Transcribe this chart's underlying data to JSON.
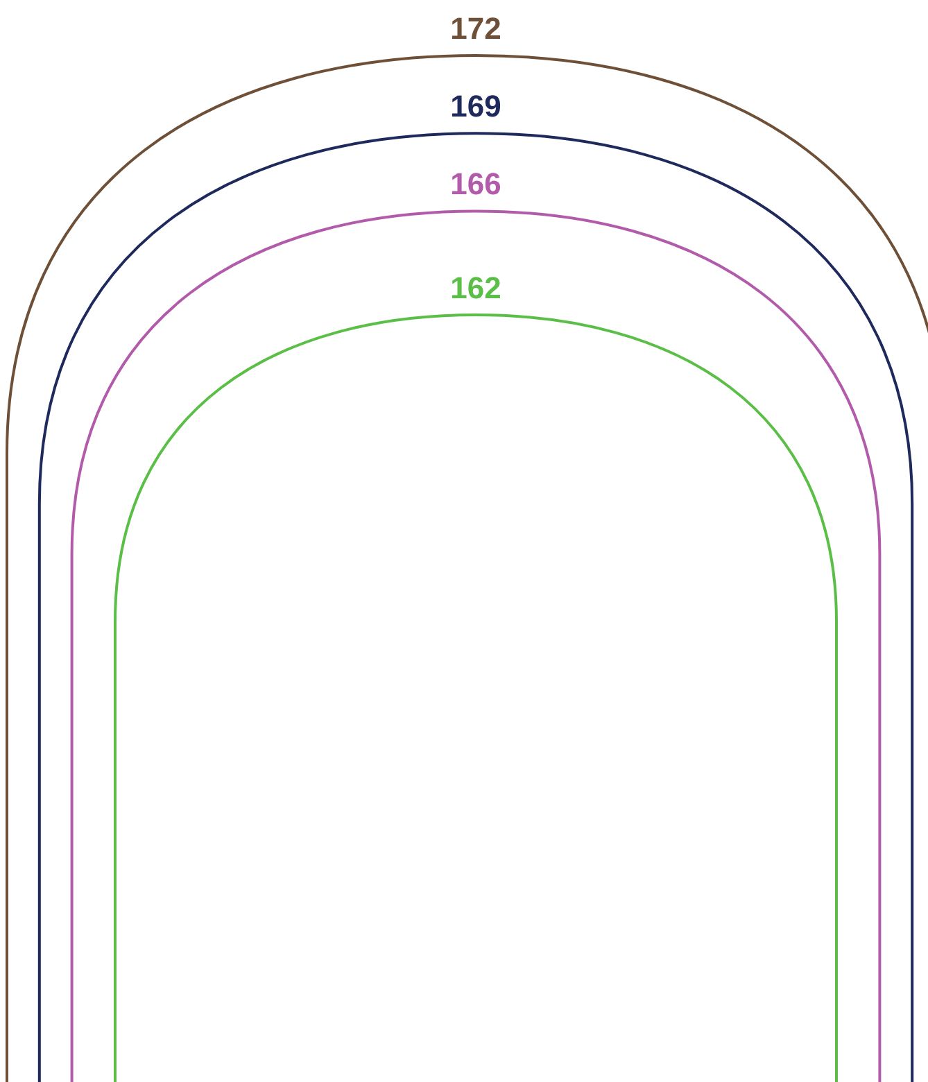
{
  "chart_data": {
    "type": "other",
    "values": [
      172,
      169,
      166,
      162
    ],
    "colors": [
      "#6e5038",
      "#1f2a5c",
      "#b35bab",
      "#5bbf47"
    ],
    "data_labels": true
  }
}
